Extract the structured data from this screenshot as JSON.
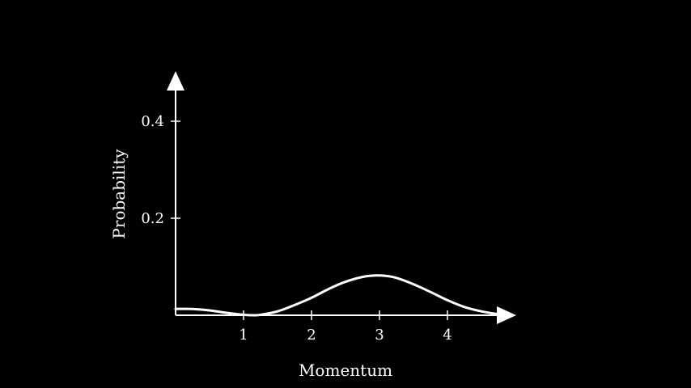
{
  "chart_data": {
    "type": "line",
    "title": "",
    "xlabel": "Momentum",
    "ylabel": "Probability",
    "xlim": [
      0,
      4.85
    ],
    "ylim": [
      0,
      0.48
    ],
    "x_ticks": [
      1,
      2,
      3,
      4
    ],
    "x_tick_labels": [
      "1",
      "2",
      "3",
      "4"
    ],
    "y_ticks": [
      0.2,
      0.4
    ],
    "y_tick_labels": [
      "0.2",
      "0.4"
    ],
    "grid": false,
    "legend": "none",
    "colors": {
      "background": "#000000",
      "axes": "#ffffff",
      "curve": "#ffffff"
    },
    "series": [
      {
        "x": [
          0,
          0.25,
          0.5,
          0.75,
          1.0,
          1.15,
          1.25,
          1.5,
          1.75,
          2.0,
          2.25,
          2.5,
          2.75,
          2.95,
          3.1,
          3.25,
          3.5,
          3.75,
          4.0,
          4.25,
          4.5,
          4.75
        ],
        "values": [
          0.013,
          0.013,
          0.01,
          0.005,
          0.001,
          0.0,
          0.001,
          0.008,
          0.021,
          0.036,
          0.054,
          0.069,
          0.079,
          0.082,
          0.081,
          0.077,
          0.064,
          0.048,
          0.031,
          0.017,
          0.008,
          0.002
        ]
      }
    ]
  }
}
